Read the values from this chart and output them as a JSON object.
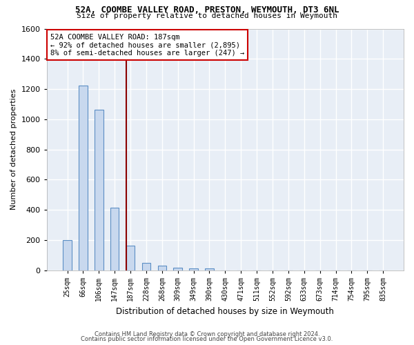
{
  "title1": "52A, COOMBE VALLEY ROAD, PRESTON, WEYMOUTH, DT3 6NL",
  "title2": "Size of property relative to detached houses in Weymouth",
  "xlabel": "Distribution of detached houses by size in Weymouth",
  "ylabel": "Number of detached properties",
  "categories": [
    "25sqm",
    "66sqm",
    "106sqm",
    "147sqm",
    "187sqm",
    "228sqm",
    "268sqm",
    "309sqm",
    "349sqm",
    "390sqm",
    "430sqm",
    "471sqm",
    "511sqm",
    "552sqm",
    "592sqm",
    "633sqm",
    "673sqm",
    "714sqm",
    "754sqm",
    "795sqm",
    "835sqm"
  ],
  "values": [
    200,
    1225,
    1065,
    415,
    165,
    50,
    30,
    20,
    15,
    15,
    0,
    0,
    0,
    0,
    0,
    0,
    0,
    0,
    0,
    0,
    0
  ],
  "bar_color": "#c8d8ee",
  "bar_edge_color": "#5b8ec4",
  "highlight_index": 4,
  "red_line_color": "#8b0000",
  "ylim": [
    0,
    1600
  ],
  "yticks": [
    0,
    200,
    400,
    600,
    800,
    1000,
    1200,
    1400,
    1600
  ],
  "annotation_text": "52A COOMBE VALLEY ROAD: 187sqm\n← 92% of detached houses are smaller (2,895)\n8% of semi-detached houses are larger (247) →",
  "annotation_box_color": "#ffffff",
  "annotation_box_edge": "#cc0000",
  "background_color": "#e8eef6",
  "grid_color": "#ffffff",
  "footer1": "Contains HM Land Registry data © Crown copyright and database right 2024.",
  "footer2": "Contains public sector information licensed under the Open Government Licence v3.0."
}
